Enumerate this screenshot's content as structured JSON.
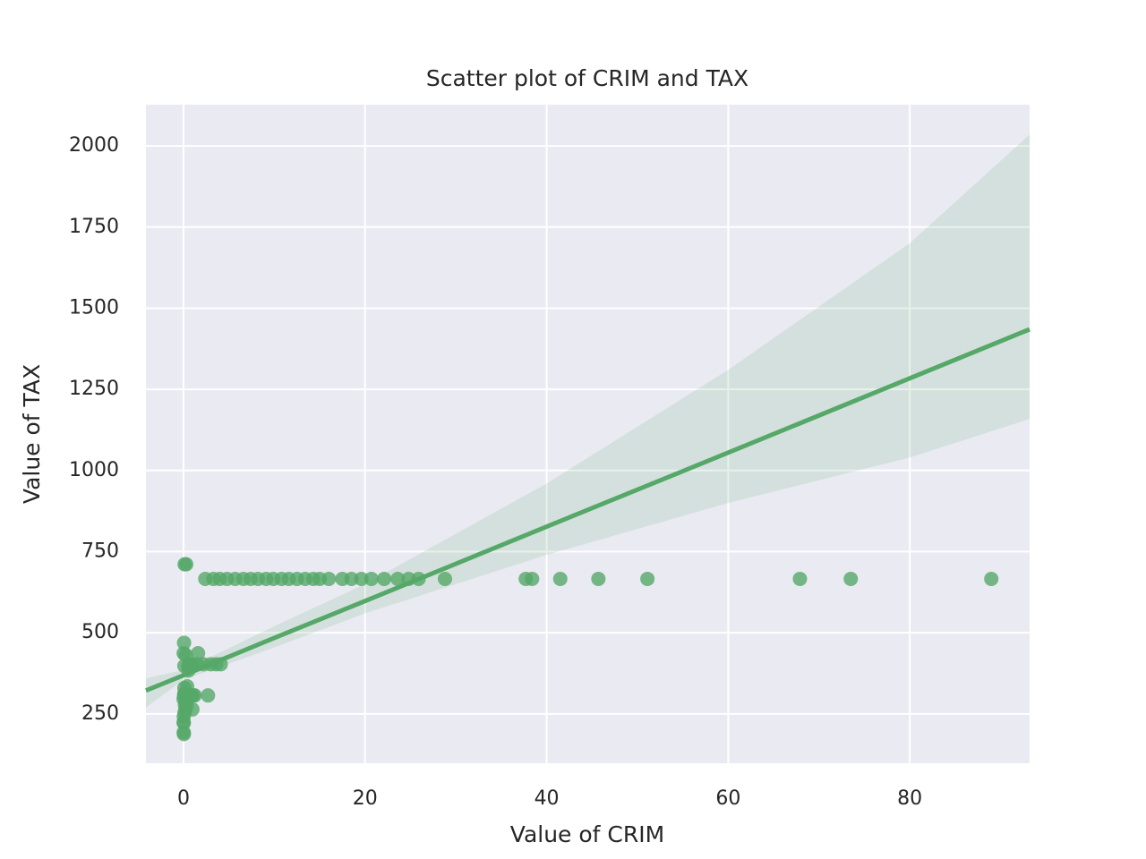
{
  "chart_data": {
    "type": "scatter",
    "title": "Scatter plot of CRIM and TAX",
    "x_label": "Value of CRIM",
    "y_label": "Value of TAX",
    "color": "#55a868",
    "background": "#eaeaf2",
    "grid": true,
    "xlim": [
      -4.14,
      93.2
    ],
    "ylim": [
      98,
      2127
    ],
    "xticks": [
      0,
      20,
      40,
      60,
      80
    ],
    "yticks": [
      250,
      500,
      750,
      1000,
      1250,
      1500,
      1750,
      2000
    ],
    "x": [
      0.006,
      0.027,
      0.032,
      0.069,
      0.088,
      0.145,
      0.211,
      0.63,
      0.8,
      1.05,
      1.23,
      0.98,
      0.35,
      0.5,
      0.02,
      0.04,
      0.1,
      0.09,
      0.015,
      0.06,
      0.3,
      0.12,
      0.25,
      0.08,
      0.013,
      0.11,
      0.4,
      1.6,
      2.7,
      0.9,
      0.55,
      0.7,
      1.5,
      2.2,
      3.0,
      3.6,
      4.1,
      2.4,
      3.3,
      4.0,
      4.8,
      5.7,
      6.6,
      7.4,
      8.2,
      9.1,
      9.9,
      10.8,
      11.6,
      12.5,
      13.4,
      14.3,
      15.0,
      16.0,
      17.5,
      18.5,
      19.6,
      20.7,
      22.1,
      23.6,
      24.8,
      25.9,
      28.8,
      37.7,
      38.4,
      41.5,
      45.7,
      51.1,
      67.9,
      73.5,
      88.98
    ],
    "values": [
      296,
      242,
      222,
      311,
      307,
      279,
      264,
      307,
      307,
      307,
      307,
      264,
      276,
      398,
      193,
      188,
      330,
      398,
      437,
      469,
      711,
      711,
      432,
      305,
      224,
      254,
      335,
      437,
      307,
      403,
      384,
      403,
      403,
      403,
      403,
      403,
      403,
      666,
      666,
      666,
      666,
      666,
      666,
      666,
      666,
      666,
      666,
      666,
      666,
      666,
      666,
      666,
      666,
      666,
      666,
      666,
      666,
      666,
      666,
      666,
      666,
      666,
      666,
      666,
      666,
      666,
      666,
      666,
      666,
      666,
      666
    ],
    "fit": {
      "x": [
        -4.14,
        0,
        10,
        20,
        40,
        60,
        80,
        93.2
      ],
      "values": [
        322,
        369,
        484,
        598,
        827,
        1055,
        1284,
        1435
      ],
      "upper": [
        360,
        385,
        520,
        650,
        960,
        1310,
        1700,
        2035
      ],
      "lower": [
        270,
        355,
        455,
        560,
        740,
        900,
        1040,
        1159
      ]
    }
  }
}
